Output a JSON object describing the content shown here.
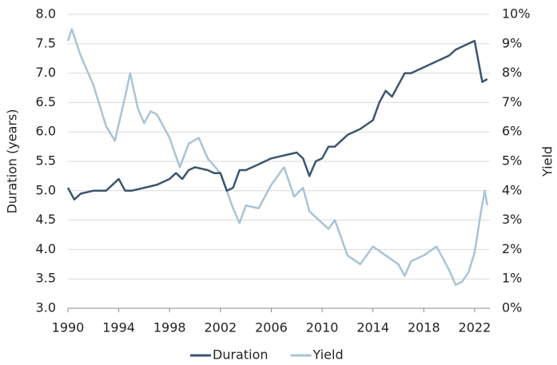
{
  "chart_data": {
    "type": "line",
    "y_label": "Duration (years)",
    "y2_label": "Yield",
    "xlim": [
      1990,
      2023.2
    ],
    "xticks": [
      1990,
      1994,
      1998,
      2002,
      2006,
      2010,
      2014,
      2018,
      2022
    ],
    "ylim": [
      3,
      8
    ],
    "yticks": [
      {
        "value": 3,
        "label": "3.0"
      },
      3.5,
      {
        "value": 4,
        "label": "4.0"
      },
      4.5,
      {
        "value": 5,
        "label": "5.0"
      },
      5.5,
      {
        "value": 6,
        "label": "6.0"
      },
      6.5,
      {
        "value": 7,
        "label": "7.0"
      },
      7.5,
      {
        "value": 8,
        "label": "8.0"
      }
    ],
    "y2lim": [
      0,
      10
    ],
    "y2ticks": [
      {
        "value": 0,
        "label": "0%"
      },
      {
        "value": 1,
        "label": "1%"
      },
      {
        "value": 2,
        "label": "2%"
      },
      {
        "value": 3,
        "label": "3%"
      },
      {
        "value": 4,
        "label": "4%"
      },
      {
        "value": 5,
        "label": "5%"
      },
      {
        "value": 6,
        "label": "6%"
      },
      {
        "value": 7,
        "label": "7%"
      },
      {
        "value": 8,
        "label": "8%"
      },
      {
        "value": 9,
        "label": "9%"
      },
      {
        "value": 10,
        "label": "10%"
      }
    ],
    "grid": true,
    "series": [
      {
        "name": "Duration",
        "color": "#3b5670",
        "x": [
          1990,
          1990.5,
          1991,
          1992,
          1993,
          1993.5,
          1994,
          1994.5,
          1995,
          1996,
          1997,
          1998,
          1998.5,
          1999,
          1999.5,
          2000,
          2001,
          2001.5,
          2002,
          2002.5,
          2003,
          2003.5,
          2004,
          2005,
          2006,
          2007,
          2008,
          2008.5,
          2009,
          2009.5,
          2010,
          2010.5,
          2011,
          2012,
          2013,
          2014,
          2014.5,
          2015,
          2015.5,
          2016,
          2016.5,
          2017,
          2018,
          2019,
          2020,
          2020.5,
          2021,
          2021.5,
          2022,
          2022.3,
          2022.6,
          2023
        ],
        "values": [
          5.05,
          4.85,
          4.95,
          5.0,
          5.0,
          5.1,
          5.2,
          5.0,
          5.0,
          5.05,
          5.1,
          5.2,
          5.3,
          5.2,
          5.35,
          5.4,
          5.35,
          5.3,
          5.3,
          5.0,
          5.05,
          5.35,
          5.35,
          5.45,
          5.55,
          5.6,
          5.65,
          5.55,
          5.25,
          5.5,
          5.55,
          5.75,
          5.75,
          5.95,
          6.05,
          6.2,
          6.5,
          6.7,
          6.6,
          6.8,
          7.0,
          7.0,
          7.1,
          7.2,
          7.3,
          7.4,
          7.45,
          7.5,
          7.55,
          7.2,
          6.85,
          6.9
        ]
      },
      {
        "name": "Yield",
        "color": "#a9c4d6",
        "axis": "y2",
        "x": [
          1990,
          1990.3,
          1991,
          1992,
          1993,
          1993.7,
          1994.5,
          1994.9,
          1995.5,
          1996,
          1996.5,
          1997,
          1998,
          1998.8,
          1999.5,
          2000.3,
          2001,
          2002,
          2003,
          2003.5,
          2004,
          2005,
          2006,
          2007,
          2007.8,
          2008.5,
          2009,
          2010,
          2010.5,
          2011,
          2012,
          2013,
          2014,
          2015,
          2016,
          2016.5,
          2017,
          2018,
          2019,
          2020,
          2020.5,
          2021,
          2021.5,
          2022,
          2022.5,
          2022.8,
          2023
        ],
        "values": [
          9.1,
          9.5,
          8.6,
          7.6,
          6.2,
          5.7,
          7.2,
          8.0,
          6.8,
          6.3,
          6.7,
          6.6,
          5.8,
          4.8,
          5.6,
          5.8,
          5.1,
          4.6,
          3.4,
          2.9,
          3.5,
          3.4,
          4.2,
          4.8,
          3.8,
          4.1,
          3.3,
          2.9,
          2.7,
          3.0,
          1.8,
          1.5,
          2.1,
          1.8,
          1.5,
          1.1,
          1.6,
          1.8,
          2.1,
          1.3,
          0.8,
          0.9,
          1.2,
          1.9,
          3.3,
          4.0,
          3.5
        ]
      }
    ]
  }
}
